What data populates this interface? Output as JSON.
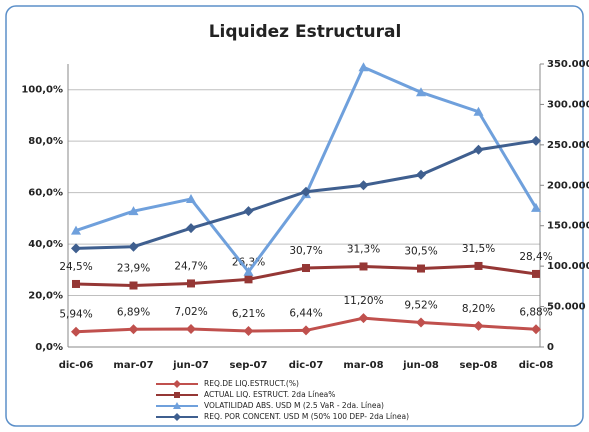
{
  "chart_data": {
    "type": "line",
    "title": "Liquidez Estructural",
    "categories": [
      "dic-06",
      "mar-07",
      "jun-07",
      "sep-07",
      "dic-07",
      "mar-08",
      "jun-08",
      "sep-08",
      "dic-08"
    ],
    "ylim": [
      0,
      110
    ],
    "yticks": [
      {
        "value": 0,
        "label": "0,0%"
      },
      {
        "value": 20,
        "label": "20,0%"
      },
      {
        "value": 40,
        "label": "40,0%"
      },
      {
        "value": 60,
        "label": "60,0%"
      },
      {
        "value": 80,
        "label": "80,0%"
      },
      {
        "value": 100,
        "label": "100,0%"
      }
    ],
    "y2lim": [
      0,
      350000
    ],
    "y2ticks": [
      0,
      {
        "value": 50000,
        "label": "50.000"
      },
      {
        "value": 100000,
        "label": "100.000"
      },
      {
        "value": 150000,
        "label": "150.000"
      },
      {
        "value": 200000,
        "label": "200.000"
      },
      {
        "value": 250000,
        "label": "250.000"
      },
      {
        "value": 300000,
        "label": "300.000"
      },
      {
        "value": 350000,
        "label": "350.000"
      }
    ],
    "grid": true,
    "legend": "bottom",
    "series": [
      {
        "name": "REQ.DE LIQ.ESTRUCT.(%)",
        "color": "#c0504d",
        "marker": "diamond",
        "values": [
          5.94,
          6.89,
          7.02,
          6.21,
          6.44,
          11.2,
          9.52,
          8.2,
          6.88
        ],
        "value_labels": [
          "5,94%",
          "6,89%",
          "7,02%",
          "6,21%",
          "6,44%",
          "11,20%",
          "9,52%",
          "8,20%",
          "6,88%"
        ]
      },
      {
        "name": "ACTUAL LIQ. ESTRUCT.  2da Línea%",
        "color": "#953735",
        "marker": "square",
        "values": [
          24.5,
          23.9,
          24.7,
          26.3,
          30.7,
          31.3,
          30.5,
          31.5,
          28.4
        ],
        "value_labels": [
          "24,5%",
          "23,9%",
          "24,7%",
          "26,3%",
          "30,7%",
          "31,3%",
          "30,5%",
          "31,5%",
          "28,4%"
        ]
      },
      {
        "name": "VOLATILIDAD  ABS.  USD M (2.5 VaR - 2da. Línea)",
        "color": "#6fa0dc",
        "marker": "triangle",
        "axis": "y2",
        "values": [
          144000,
          168000,
          183000,
          93000,
          189000,
          346000,
          315000,
          291000,
          172000
        ]
      },
      {
        "name": "REQ. POR CONCENT.  USD M (50% 100 DEP- 2da Línea)",
        "color": "#3f5f8f",
        "marker": "diamond",
        "axis": "y2",
        "values": [
          122000,
          124000,
          147000,
          168000,
          192000,
          200000,
          213000,
          244000,
          255000
        ]
      }
    ]
  }
}
